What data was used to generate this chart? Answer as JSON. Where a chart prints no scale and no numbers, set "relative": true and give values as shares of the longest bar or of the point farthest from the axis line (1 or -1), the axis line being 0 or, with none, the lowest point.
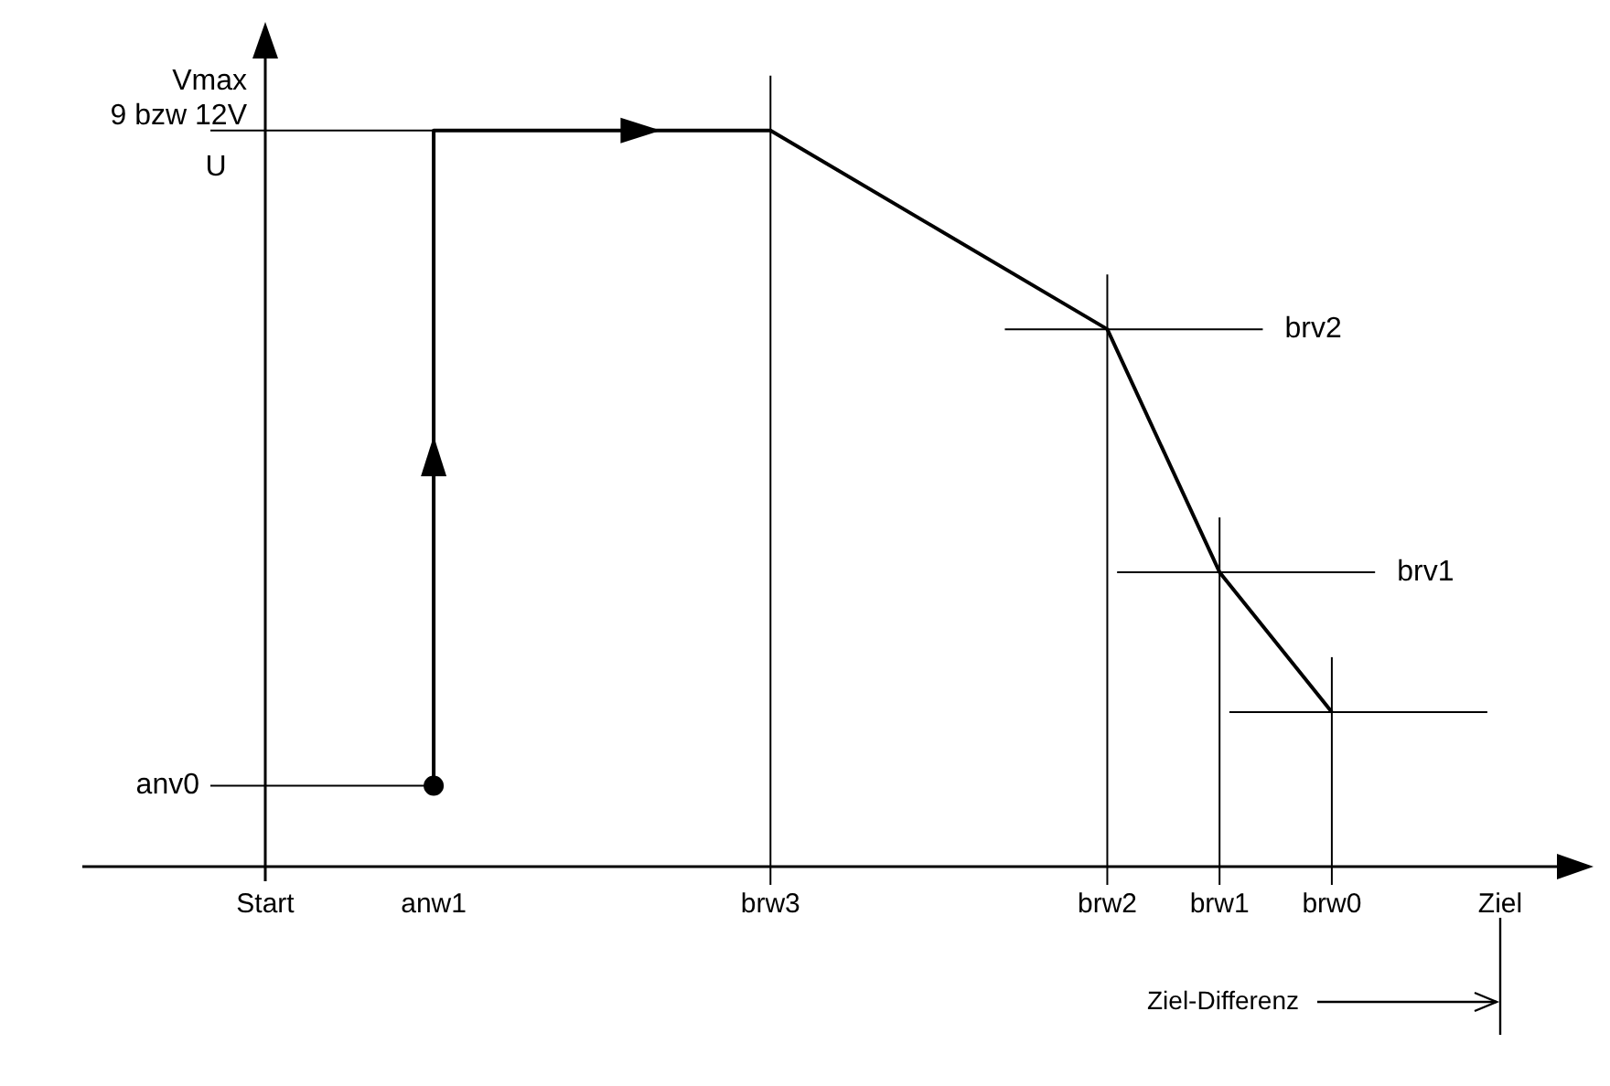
{
  "chart_data": {
    "type": "line",
    "relative": true,
    "ylabel": "U",
    "categories": [
      "Start",
      null,
      null,
      "anw1",
      null,
      null,
      null,
      null,
      null,
      "brw3",
      null,
      null,
      null,
      null,
      null,
      "brw2",
      null,
      "brw1",
      null,
      "brw0",
      null,
      null,
      "Ziel"
    ],
    "series": [
      {
        "color": "#000000",
        "x": [
          "anw1",
          "anw1",
          "brw3",
          "brw2",
          "brw1",
          "brw0"
        ],
        "values": [
          0.11,
          1,
          1,
          0.73,
          0.4,
          0.21
        ]
      },
      {
        "type": "scatter",
        "color": "#000000",
        "x": [
          "anw1"
        ],
        "values": [
          0.11
        ]
      }
    ],
    "grid": false,
    "ref_lines": [
      {
        "axis": "y",
        "value": 1,
        "label": "Vmax\n9 bzw 12V"
      },
      {
        "axis": "y",
        "value": 0.11,
        "label": "anv0"
      },
      {
        "axis": "y",
        "value": 0.73,
        "label": "brv2"
      },
      {
        "axis": "y",
        "value": 0.4,
        "label": "brv1"
      },
      {
        "axis": "y",
        "value": 0.21,
        "label": null
      },
      {
        "axis": "x",
        "value": "brw3"
      },
      {
        "axis": "x",
        "value": "brw2"
      },
      {
        "axis": "x",
        "value": "brw1"
      },
      {
        "axis": "x",
        "value": "brw0"
      }
    ],
    "annotations": [
      "Ziel-Differenz"
    ]
  }
}
